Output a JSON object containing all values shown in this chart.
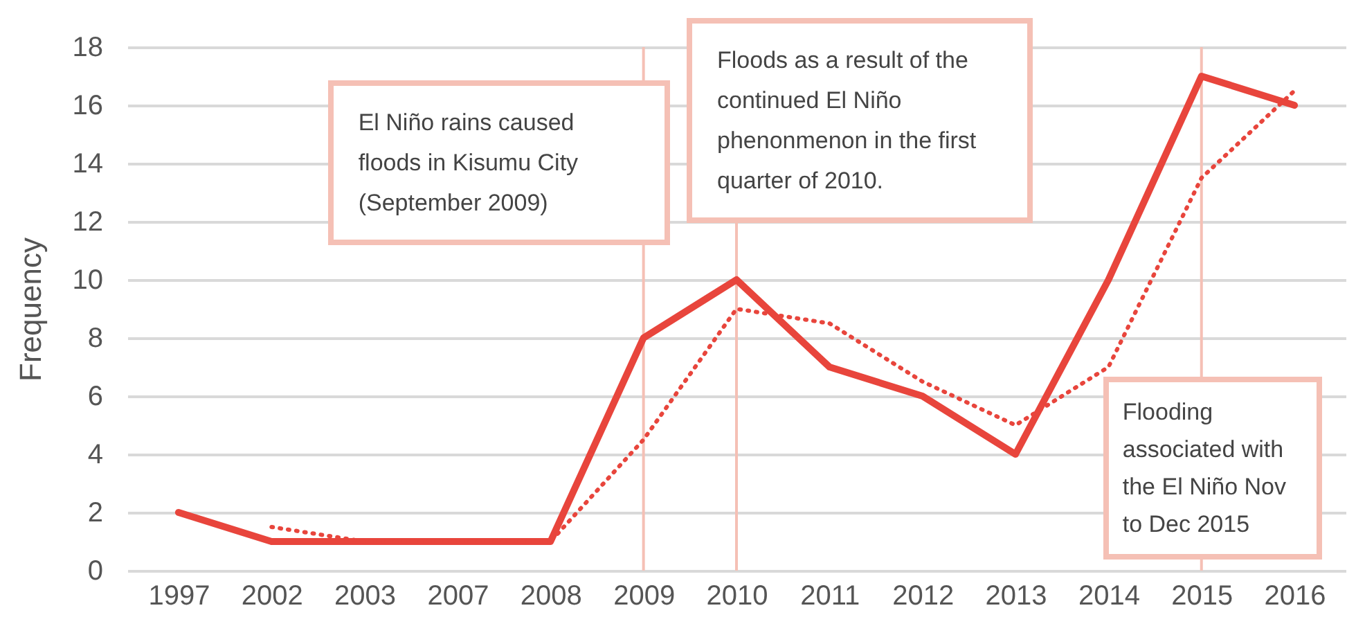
{
  "chart_data": {
    "type": "line",
    "ylabel": "Frequency",
    "categories": [
      "1997",
      "2002",
      "2003",
      "2007",
      "2008",
      "2009",
      "2010",
      "2011",
      "2012",
      "2013",
      "2014",
      "2015",
      "2016"
    ],
    "series": [
      {
        "color": "#e8453c",
        "values": [
          2,
          1,
          1,
          1,
          1,
          8,
          10,
          7,
          6,
          4,
          10,
          17,
          16
        ],
        "line_style": "solid"
      },
      {
        "color": "#e8453c",
        "values": [
          null,
          1.5,
          1,
          1,
          1,
          4.5,
          9,
          8.5,
          6.5,
          5,
          7,
          13.5,
          16.5
        ],
        "line_style": "dotted"
      }
    ],
    "ylim": [
      0,
      18
    ],
    "yticks": [
      0,
      2,
      4,
      6,
      8,
      10,
      12,
      14,
      16,
      18
    ],
    "grid": "y",
    "ref_lines": [
      {
        "axis": "x",
        "value": "2009",
        "label": "El Niño rains caused floods in Kisumu City (September 2009)",
        "color": "#f5c0b5"
      },
      {
        "axis": "x",
        "value": "2010",
        "label": "Floods as a result of the continued El Niño phenonmenon in the first quarter of 2010.",
        "color": "#f5c0b5"
      },
      {
        "axis": "x",
        "value": "2015",
        "label": "Flooding associated with the El Niño Nov to Dec 2015",
        "color": "#f5c0b5"
      }
    ]
  }
}
